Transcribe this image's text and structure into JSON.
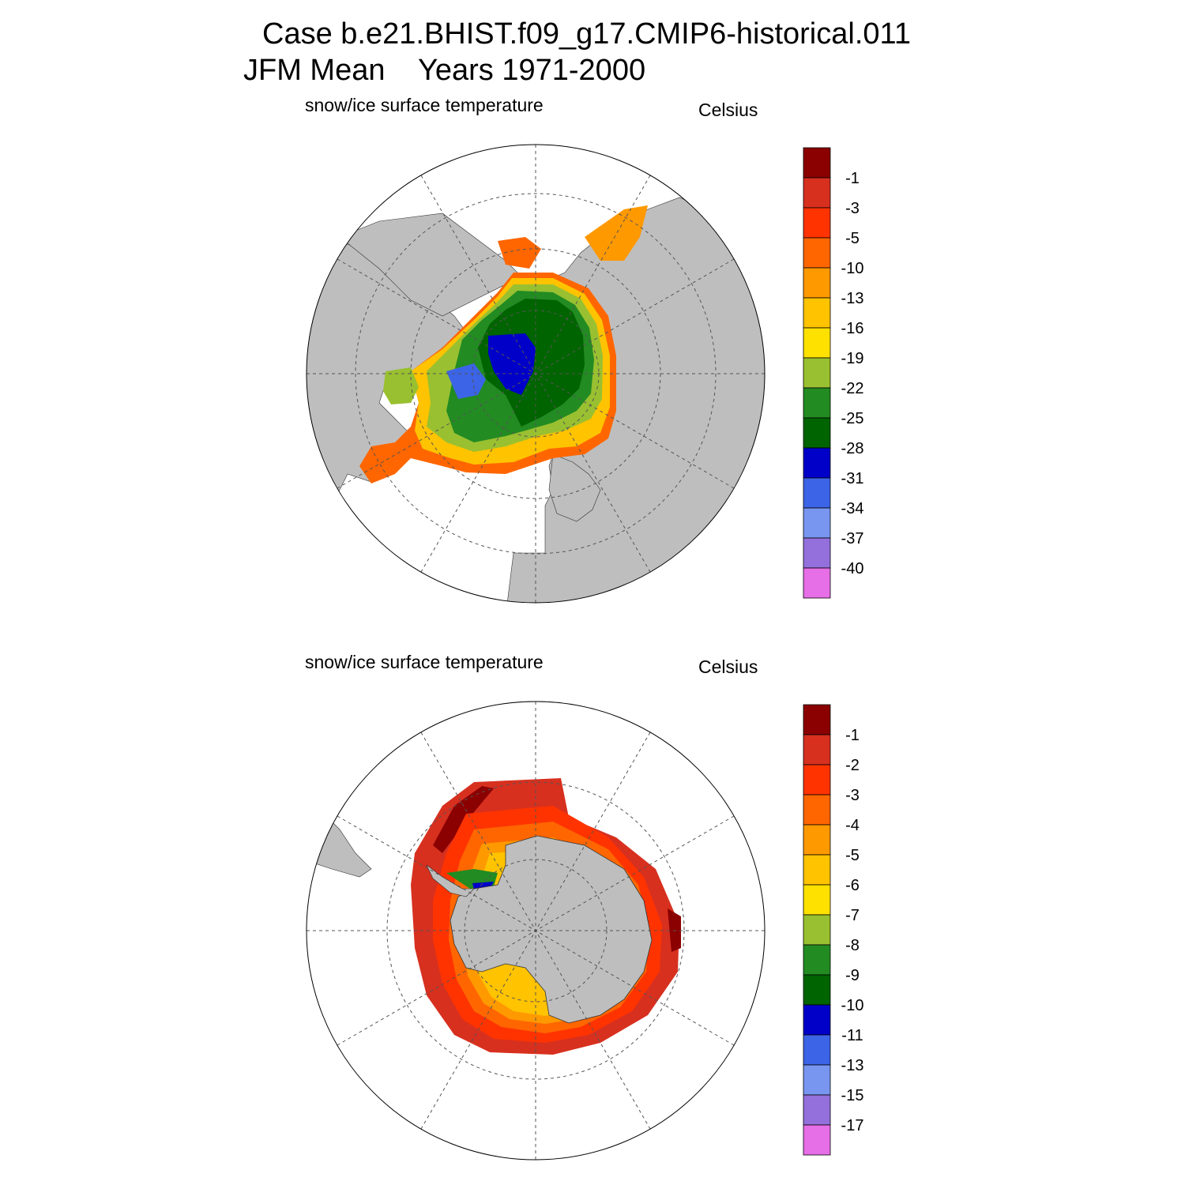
{
  "title": {
    "line1": "Case b.e21.BHIST.f09_g17.CMIP6-historical.011",
    "line2": "JFM Mean    Years 1971-2000"
  },
  "colors": {
    "land": "#bebebe",
    "ocean": "#ffffff",
    "grid": "#555555"
  },
  "chart_data": [
    {
      "type": "heatmap",
      "projection": "north-polar-stereographic",
      "title": "snow/ice surface temperature",
      "units": "Celsius",
      "colorbar": {
        "labels": [
          "-1",
          "-3",
          "-5",
          "-10",
          "-13",
          "-16",
          "-19",
          "-22",
          "-25",
          "-28",
          "-31",
          "-34",
          "-37",
          "-40"
        ],
        "colors": [
          "#8b0000",
          "#d7301f",
          "#ff3300",
          "#ff6600",
          "#ff9900",
          "#ffc300",
          "#ffe100",
          "#99c030",
          "#228b22",
          "#006400",
          "#0000c8",
          "#3c64e6",
          "#7896f0",
          "#9370db",
          "#e66ee6"
        ]
      }
    },
    {
      "type": "heatmap",
      "projection": "south-polar-stereographic",
      "title": "snow/ice surface temperature",
      "units": "Celsius",
      "colorbar": {
        "labels": [
          "-1",
          "-2",
          "-3",
          "-4",
          "-5",
          "-6",
          "-7",
          "-8",
          "-9",
          "-10",
          "-11",
          "-13",
          "-15",
          "-17"
        ],
        "colors": [
          "#8b0000",
          "#d7301f",
          "#ff3300",
          "#ff6600",
          "#ff9900",
          "#ffc300",
          "#ffe100",
          "#99c030",
          "#228b22",
          "#006400",
          "#0000c8",
          "#3c64e6",
          "#7896f0",
          "#9370db",
          "#e66ee6"
        ]
      }
    }
  ]
}
